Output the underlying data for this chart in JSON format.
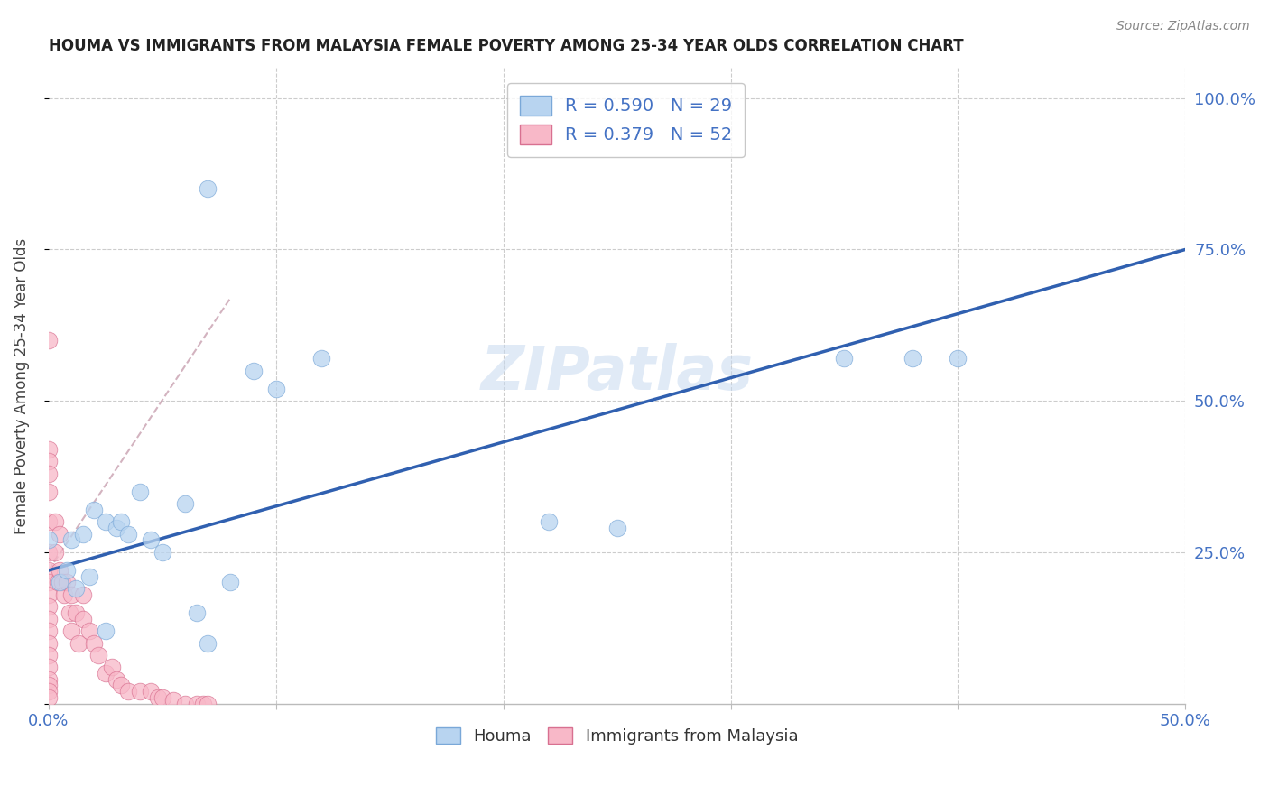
{
  "title": "HOUMA VS IMMIGRANTS FROM MALAYSIA FEMALE POVERTY AMONG 25-34 YEAR OLDS CORRELATION CHART",
  "source": "Source: ZipAtlas.com",
  "ylabel": "Female Poverty Among 25-34 Year Olds",
  "watermark": "ZIPatlas",
  "xlim": [
    0.0,
    0.5
  ],
  "ylim": [
    0.0,
    1.05
  ],
  "color_blue_fill": "#b8d4f0",
  "color_blue_edge": "#7aA8d8",
  "color_blue_line": "#3060b0",
  "color_pink_fill": "#f8b8c8",
  "color_pink_edge": "#d87090",
  "color_pink_line": "#d87090",
  "color_grid": "#cccccc",
  "color_text_blue": "#4472c4",
  "color_axis_text": "#4472c4",
  "houma_x": [
    0.0,
    0.005,
    0.008,
    0.01,
    0.012,
    0.015,
    0.018,
    0.02,
    0.025,
    0.03,
    0.032,
    0.035,
    0.04,
    0.045,
    0.05,
    0.06,
    0.065,
    0.07,
    0.08,
    0.09,
    0.1,
    0.12,
    0.22,
    0.25,
    0.35,
    0.38,
    0.4,
    0.025,
    0.07
  ],
  "houma_y": [
    0.27,
    0.2,
    0.22,
    0.27,
    0.19,
    0.28,
    0.21,
    0.32,
    0.3,
    0.29,
    0.3,
    0.28,
    0.35,
    0.27,
    0.25,
    0.33,
    0.15,
    0.85,
    0.2,
    0.55,
    0.52,
    0.57,
    0.3,
    0.29,
    0.57,
    0.57,
    0.57,
    0.12,
    0.1
  ],
  "malaysia_x": [
    0.0,
    0.0,
    0.0,
    0.0,
    0.0,
    0.0,
    0.0,
    0.0,
    0.0,
    0.0,
    0.0,
    0.0,
    0.0,
    0.0,
    0.0,
    0.0,
    0.0,
    0.0,
    0.0,
    0.0,
    0.003,
    0.003,
    0.004,
    0.005,
    0.005,
    0.006,
    0.007,
    0.008,
    0.009,
    0.01,
    0.01,
    0.012,
    0.013,
    0.015,
    0.015,
    0.018,
    0.02,
    0.022,
    0.025,
    0.028,
    0.03,
    0.032,
    0.035,
    0.04,
    0.045,
    0.048,
    0.05,
    0.055,
    0.06,
    0.065,
    0.068,
    0.07
  ],
  "malaysia_y": [
    0.6,
    0.42,
    0.4,
    0.38,
    0.35,
    0.3,
    0.25,
    0.22,
    0.2,
    0.18,
    0.16,
    0.14,
    0.12,
    0.1,
    0.08,
    0.06,
    0.04,
    0.03,
    0.02,
    0.01,
    0.3,
    0.25,
    0.2,
    0.28,
    0.22,
    0.2,
    0.18,
    0.2,
    0.15,
    0.18,
    0.12,
    0.15,
    0.1,
    0.18,
    0.14,
    0.12,
    0.1,
    0.08,
    0.05,
    0.06,
    0.04,
    0.03,
    0.02,
    0.02,
    0.02,
    0.01,
    0.01,
    0.005,
    0.0,
    0.0,
    0.0,
    0.0
  ],
  "houma_line_x": [
    0.0,
    0.5
  ],
  "houma_line_y": [
    0.22,
    0.75
  ],
  "malaysia_line_x": [
    0.0,
    0.08
  ],
  "malaysia_line_y": [
    0.22,
    0.67
  ]
}
